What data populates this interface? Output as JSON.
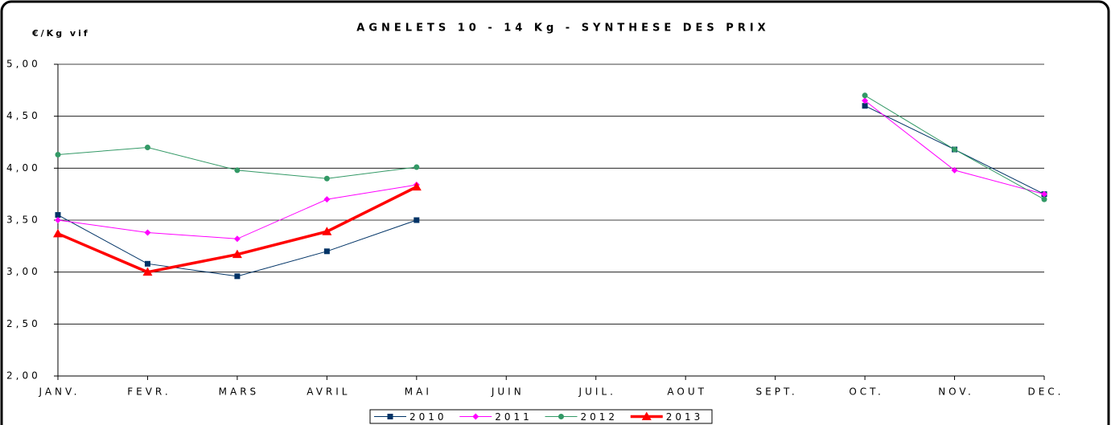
{
  "chart_data": {
    "type": "line",
    "title": "AGNELETS 10 - 14 Kg - SYNTHESE DES PRIX",
    "y_label": "€/Kg vif",
    "categories": [
      "JANV.",
      "FEVR.",
      "MARS",
      "AVRIL",
      "MAI",
      "JUIN",
      "JUIL.",
      "AOUT",
      "SEPT.",
      "OCT.",
      "NOV.",
      "DEC."
    ],
    "ylim": [
      2,
      5
    ],
    "yticks": [
      {
        "value": 2,
        "label": "2,00"
      },
      {
        "value": 2.5,
        "label": "2,50"
      },
      {
        "value": 3,
        "label": "3,00"
      },
      {
        "value": 3.5,
        "label": "3,50"
      },
      {
        "value": 4,
        "label": "4,00"
      },
      {
        "value": 4.5,
        "label": "4,50"
      },
      {
        "value": 5,
        "label": "5,00"
      }
    ],
    "grid": true,
    "legend": "bottom",
    "series": [
      {
        "name": "2010",
        "color": "#003366",
        "marker": "square",
        "line_width": 1,
        "values": [
          3.55,
          3.08,
          2.96,
          3.2,
          3.5,
          null,
          null,
          null,
          null,
          4.6,
          4.18,
          3.75
        ]
      },
      {
        "name": "2011",
        "color": "#ff00ff",
        "marker": "diamond",
        "line_width": 1,
        "values": [
          3.5,
          3.38,
          3.32,
          3.7,
          3.84,
          null,
          null,
          null,
          null,
          4.65,
          3.98,
          3.75
        ]
      },
      {
        "name": "2012",
        "color": "#339966",
        "marker": "circle",
        "line_width": 1,
        "values": [
          4.13,
          4.2,
          3.98,
          3.9,
          4.01,
          null,
          null,
          null,
          null,
          4.7,
          4.18,
          3.7
        ]
      },
      {
        "name": "2013",
        "color": "#ff0000",
        "marker": "triangle",
        "line_width": 3.5,
        "values": [
          3.37,
          3.0,
          3.17,
          3.39,
          3.82,
          null,
          null,
          null,
          null,
          null,
          null,
          null
        ]
      }
    ]
  }
}
